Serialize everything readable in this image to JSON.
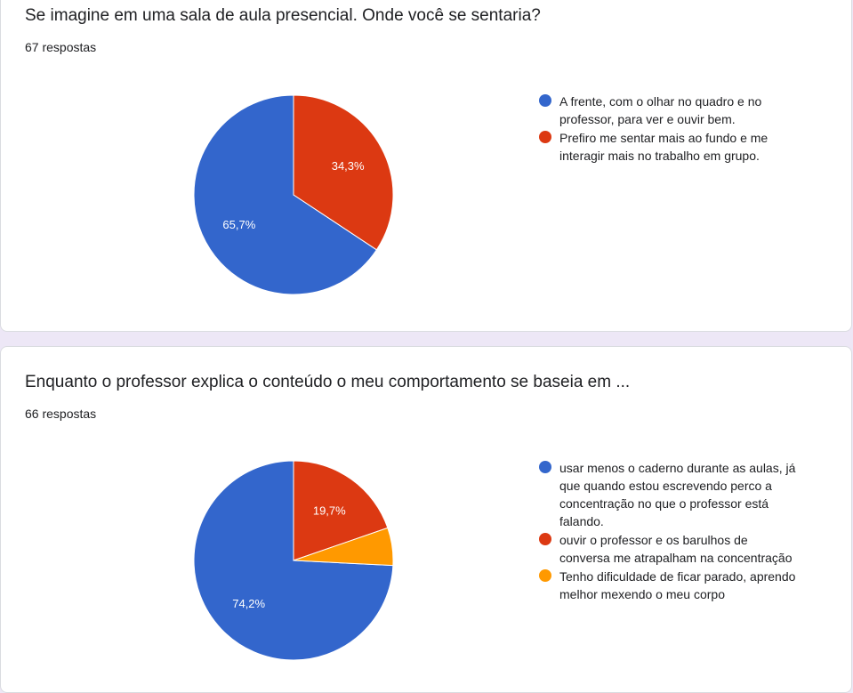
{
  "colors": {
    "blue": "#3366cc",
    "red": "#dc3912",
    "orange": "#ff9900"
  },
  "chart_data": [
    {
      "type": "pie",
      "title": "Se imagine em uma sala de aula presencial. Onde você se sentaria?",
      "subtitle": "67 respostas",
      "legend_position": "right",
      "slices": [
        {
          "label": "A frente, com o olhar no quadro e no professor, para ver e ouvir bem.",
          "value": 65.7,
          "display": "65,7%",
          "color": "#3366cc"
        },
        {
          "label": "Prefiro me sentar mais ao fundo e me interagir mais no trabalho em grupo.",
          "value": 34.3,
          "display": "34,3%",
          "color": "#dc3912"
        }
      ]
    },
    {
      "type": "pie",
      "title": "Enquanto o professor explica o conteúdo o meu comportamento se baseia em ...",
      "subtitle": "66 respostas",
      "legend_position": "right",
      "slices": [
        {
          "label": "usar menos o caderno durante as aulas, já que quando estou escrevendo perco a concentração no que o professor está falando.",
          "value": 74.2,
          "display": "74,2%",
          "color": "#3366cc"
        },
        {
          "label": "ouvir o professor e os barulhos de conversa me atrapalham na concentração",
          "value": 19.7,
          "display": "19,7%",
          "color": "#dc3912"
        },
        {
          "label": "Tenho dificuldade de ficar parado, aprendo melhor mexendo o meu corpo",
          "value": 6.1,
          "display": "",
          "color": "#ff9900"
        }
      ]
    }
  ]
}
